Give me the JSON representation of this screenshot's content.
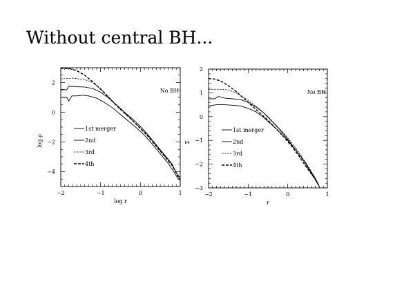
{
  "title": "Without central BH...",
  "chart_data": [
    {
      "type": "line",
      "annotation": "No BH",
      "xlabel": "log r",
      "ylabel": "log ρ",
      "xlim": [
        -2,
        1
      ],
      "ylim": [
        -5,
        3
      ],
      "xticks": [
        -2,
        -1,
        0,
        1
      ],
      "yticks": [
        -4,
        -2,
        0,
        2
      ],
      "xtick_labels": [
        "−2",
        "−1",
        "0",
        "1"
      ],
      "ytick_labels": [
        "−4",
        "−2",
        "0",
        "2"
      ],
      "legend_position": "lower-left",
      "series": [
        {
          "name": "1st merger",
          "style": "solid",
          "x": [
            -2,
            -1.85,
            -1.8,
            -1.72,
            -1.6,
            -1.45,
            -1.3,
            -1.1,
            -0.9,
            -0.7,
            -0.5,
            -0.3,
            -0.1,
            0.1,
            0.3,
            0.5,
            0.7,
            0.85,
            0.95,
            1.0
          ],
          "y": [
            1.0,
            1.0,
            0.75,
            1.1,
            1.1,
            1.15,
            1.1,
            0.95,
            0.65,
            0.3,
            -0.15,
            -0.6,
            -1.05,
            -1.55,
            -2.15,
            -2.8,
            -3.45,
            -4.05,
            -4.5,
            -4.55
          ]
        },
        {
          "name": "2nd",
          "style": "solid",
          "x": [
            -2,
            -1.85,
            -1.8,
            -1.6,
            -1.4,
            -1.2,
            -1.0,
            -0.8,
            -0.6,
            -0.4,
            -0.2,
            0.0,
            0.2,
            0.4,
            0.6,
            0.8,
            0.9,
            1.0
          ],
          "y": [
            1.55,
            1.5,
            1.75,
            1.72,
            1.7,
            1.6,
            1.35,
            0.95,
            0.5,
            0.0,
            -0.45,
            -0.95,
            -1.55,
            -2.2,
            -2.85,
            -3.5,
            -4.1,
            -4.4
          ]
        },
        {
          "name": "3rd",
          "style": "dashed",
          "x": [
            -2,
            -1.7,
            -1.4,
            -1.2,
            -1.0,
            -0.8,
            -0.6,
            -0.4,
            -0.2,
            0.0,
            0.2,
            0.4,
            0.6,
            0.8,
            1.0
          ],
          "y": [
            2.25,
            2.3,
            2.2,
            2.0,
            1.6,
            1.05,
            0.45,
            -0.05,
            -0.55,
            -1.05,
            -1.6,
            -2.25,
            -2.9,
            -3.55,
            -4.55
          ]
        },
        {
          "name": "4th",
          "style": "bold-dashed",
          "x": [
            -2,
            -1.8,
            -1.6,
            -1.4,
            -1.2,
            -1.0,
            -0.8,
            -0.6,
            -0.4,
            -0.2,
            0.0,
            0.2,
            0.4,
            0.6,
            0.8,
            1.0
          ],
          "y": [
            2.95,
            2.95,
            2.8,
            2.5,
            2.05,
            1.55,
            1.0,
            0.45,
            -0.05,
            -0.55,
            -1.1,
            -1.65,
            -2.3,
            -2.95,
            -3.6,
            -4.6
          ]
        }
      ]
    },
    {
      "type": "line",
      "annotation": "No BH",
      "xlabel": "r",
      "ylabel": "Σ",
      "xlim": [
        -2,
        1
      ],
      "ylim": [
        -3,
        2
      ],
      "xticks": [
        -2,
        -1,
        0,
        1
      ],
      "yticks": [
        -3,
        -2,
        -1,
        0,
        1,
        2
      ],
      "xtick_labels": [
        "−2",
        "−1",
        "0",
        "1"
      ],
      "ytick_labels": [
        "−3",
        "−2",
        "−1",
        "0",
        "1",
        "2"
      ],
      "legend_position": "lower-left",
      "series": [
        {
          "name": "1st merger",
          "style": "solid",
          "x": [
            -2,
            -1.8,
            -1.6,
            -1.4,
            -1.2,
            -1.0,
            -0.8,
            -0.6,
            -0.4,
            -0.2,
            0.0,
            0.2,
            0.4,
            0.6,
            0.7,
            0.8
          ],
          "y": [
            0.45,
            0.5,
            0.5,
            0.48,
            0.45,
            0.35,
            0.2,
            -0.05,
            -0.35,
            -0.65,
            -1.0,
            -1.4,
            -1.85,
            -2.35,
            -2.6,
            -2.95
          ]
        },
        {
          "name": "2nd",
          "style": "solid",
          "x": [
            -2,
            -1.85,
            -1.75,
            -1.6,
            -1.4,
            -1.2,
            -1.0,
            -0.8,
            -0.6,
            -0.4,
            -0.2,
            0.0,
            0.2,
            0.4,
            0.6,
            0.8
          ],
          "y": [
            0.75,
            0.75,
            0.85,
            0.78,
            0.75,
            0.72,
            0.6,
            0.4,
            0.15,
            -0.2,
            -0.55,
            -0.95,
            -1.4,
            -1.85,
            -2.4,
            -2.95
          ]
        },
        {
          "name": "3rd",
          "style": "dashed",
          "x": [
            -2,
            -1.7,
            -1.5,
            -1.3,
            -1.1,
            -0.9,
            -0.7,
            -0.5,
            -0.3,
            -0.1,
            0.1,
            0.3,
            0.5,
            0.7,
            0.8
          ],
          "y": [
            1.15,
            1.15,
            1.12,
            1.0,
            0.8,
            0.55,
            0.3,
            0.0,
            -0.35,
            -0.7,
            -1.1,
            -1.55,
            -2.05,
            -2.6,
            -2.95
          ]
        },
        {
          "name": "4th",
          "style": "bold-dashed",
          "x": [
            -2,
            -1.85,
            -1.7,
            -1.5,
            -1.3,
            -1.1,
            -0.9,
            -0.7,
            -0.5,
            -0.3,
            -0.1,
            0.1,
            0.3,
            0.5,
            0.7,
            0.8
          ],
          "y": [
            1.6,
            1.58,
            1.5,
            1.3,
            1.05,
            0.75,
            0.45,
            0.15,
            -0.15,
            -0.5,
            -0.85,
            -1.25,
            -1.7,
            -2.2,
            -2.65,
            -2.95
          ]
        }
      ]
    }
  ]
}
